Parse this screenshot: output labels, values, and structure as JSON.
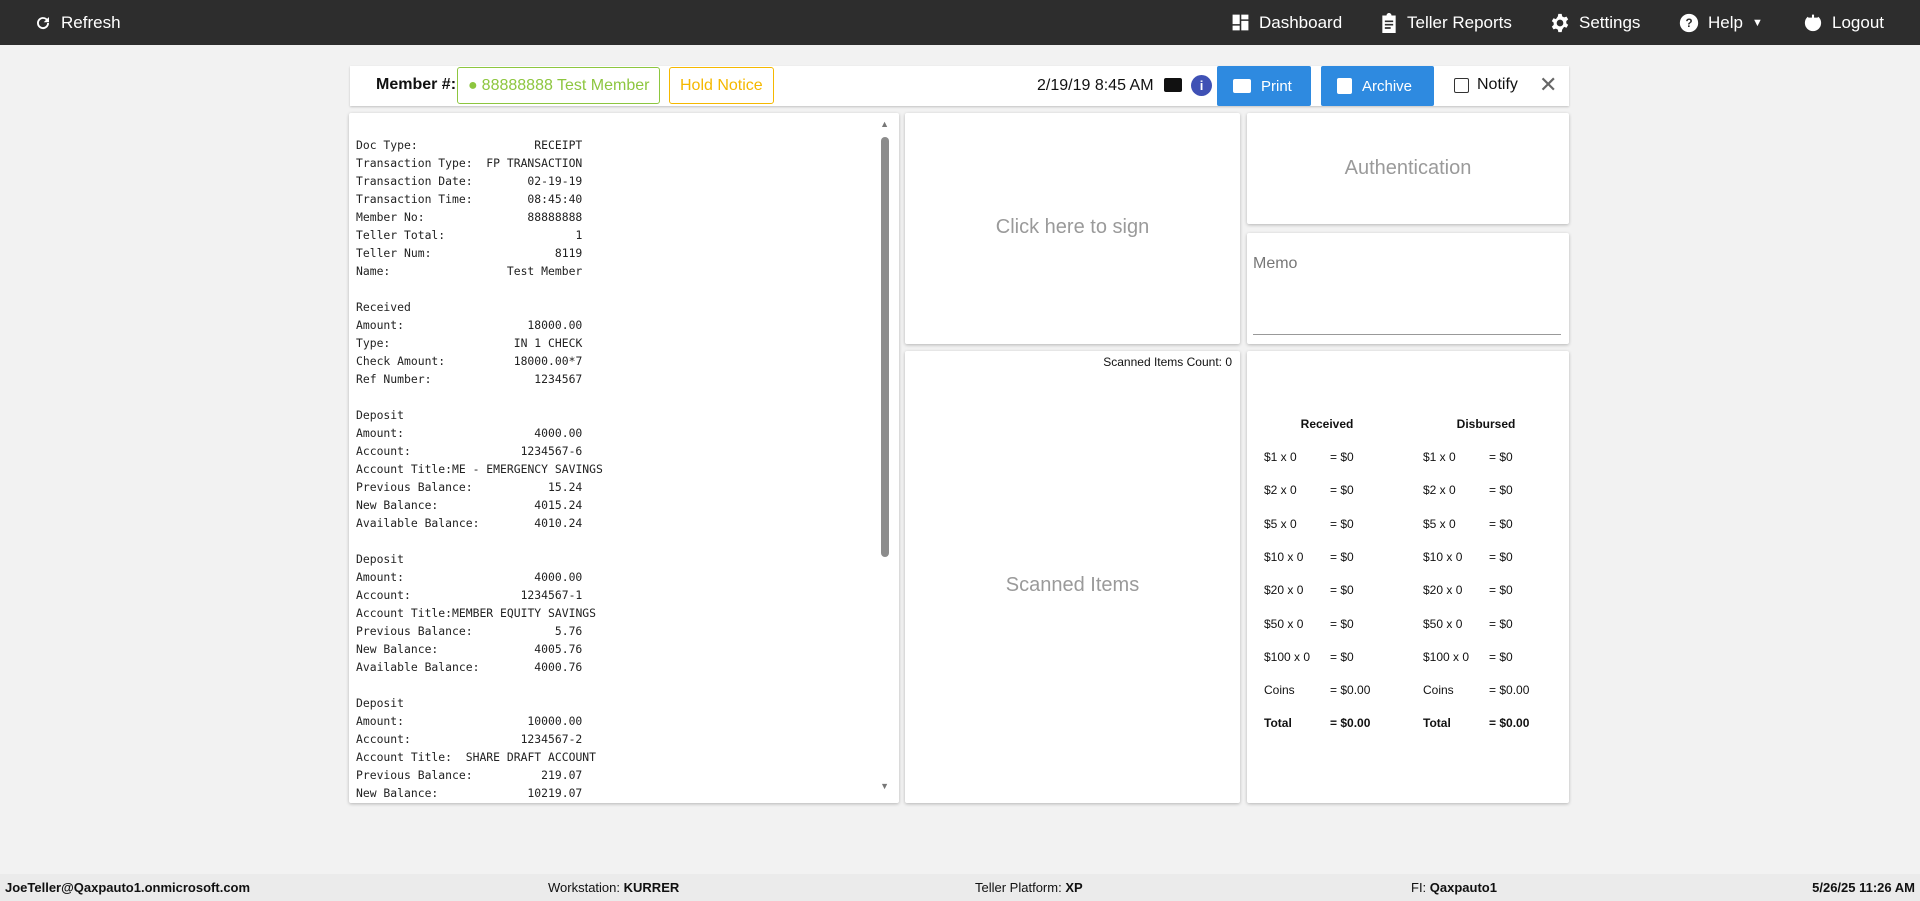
{
  "nav": {
    "refresh": "Refresh",
    "dashboard": "Dashboard",
    "teller_reports": "Teller Reports",
    "settings": "Settings",
    "help": "Help",
    "logout": "Logout"
  },
  "header": {
    "member_label": "Member #:",
    "member": "88888888 Test Member",
    "hold_notice": "Hold Notice",
    "datetime": "2/19/19 8:45 AM",
    "print": "Print",
    "archive": "Archive",
    "notify": "Notify",
    "colors": {
      "member": "#8dc63f",
      "hold": "#f5b800",
      "button": "#2e8ae0"
    }
  },
  "receipt": [
    [
      "Doc Type:",
      "RECEIPT"
    ],
    [
      "Transaction Type:",
      "FP TRANSACTION"
    ],
    [
      "Transaction Date:",
      "02-19-19"
    ],
    [
      "Transaction Time:",
      "08:45:40"
    ],
    [
      "Member No:",
      "88888888"
    ],
    [
      "Teller Total:",
      "1"
    ],
    [
      "Teller Num:",
      "8119"
    ],
    [
      "Name:",
      "Test Member"
    ],
    [
      "",
      ""
    ],
    [
      "Received",
      ""
    ],
    [
      "Amount:",
      "18000.00"
    ],
    [
      "Type:",
      "IN 1 CHECK"
    ],
    [
      "Check Amount:",
      "18000.00*7"
    ],
    [
      "Ref Number:",
      "1234567"
    ],
    [
      "",
      ""
    ],
    [
      "Deposit",
      ""
    ],
    [
      "Amount:",
      "4000.00"
    ],
    [
      "Account:",
      "1234567-6"
    ],
    [
      "Account Title:ME - EMERGENCY SAVINGS",
      ""
    ],
    [
      "Previous Balance:",
      "15.24"
    ],
    [
      "New Balance:",
      "4015.24"
    ],
    [
      "Available Balance:",
      "4010.24"
    ],
    [
      "",
      ""
    ],
    [
      "Deposit",
      ""
    ],
    [
      "Amount:",
      "4000.00"
    ],
    [
      "Account:",
      "1234567-1"
    ],
    [
      "Account Title:MEMBER EQUITY SAVINGS",
      ""
    ],
    [
      "Previous Balance:",
      "5.76"
    ],
    [
      "New Balance:",
      "4005.76"
    ],
    [
      "Available Balance:",
      "4000.76"
    ],
    [
      "",
      ""
    ],
    [
      "Deposit",
      ""
    ],
    [
      "Amount:",
      "10000.00"
    ],
    [
      "Account:",
      "1234567-2"
    ],
    [
      "Account Title:  SHARE DRAFT ACCOUNT",
      ""
    ],
    [
      "Previous Balance:",
      "219.07"
    ],
    [
      "New Balance:",
      "10219.07"
    ]
  ],
  "sign": "Click here to sign",
  "scanned": {
    "count": "Scanned Items Count: 0",
    "placeholder": "Scanned Items"
  },
  "auth": "Authentication",
  "memo": {
    "label": "Memo",
    "value": ""
  },
  "cash": {
    "received": "Received",
    "disbursed": "Disbursed",
    "rows": [
      [
        "$1 x 0",
        "= $0"
      ],
      [
        "$2 x 0",
        "= $0"
      ],
      [
        "$5 x 0",
        "= $0"
      ],
      [
        "$10 x 0",
        "= $0"
      ],
      [
        "$20 x 0",
        "= $0"
      ],
      [
        "$50 x 0",
        "= $0"
      ],
      [
        "$100 x 0",
        "= $0"
      ],
      [
        "Coins",
        "= $0.00"
      ],
      [
        "Total",
        "= $0.00"
      ]
    ]
  },
  "footer": {
    "user": "JoeTeller@Qaxpauto1.onmicrosoft.com",
    "workstation_label": "Workstation:",
    "workstation": "KURRER",
    "platform_label": "Teller Platform:",
    "platform": "XP",
    "fi_label": "FI:",
    "fi": "Qaxpauto1",
    "datetime": "5/26/25 11:26 AM"
  }
}
